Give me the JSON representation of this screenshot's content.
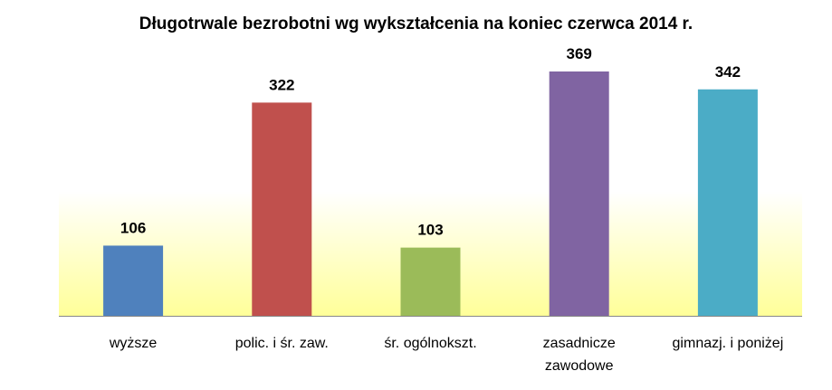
{
  "chart_data": {
    "type": "bar",
    "title": "Długotrwale bezrobotni wg wykształcenia na koniec czerwca 2014 r.",
    "categories": [
      [
        "wyższe"
      ],
      [
        "polic. i śr. zaw."
      ],
      [
        "śr. ogólnokszt."
      ],
      [
        "zasadnicze",
        "zawodowe"
      ],
      [
        "gimnazj. i poniżej"
      ]
    ],
    "values": [
      106,
      322,
      103,
      369,
      342
    ],
    "data_labels": [
      "106",
      "322",
      "103",
      "369",
      "342"
    ],
    "bar_colors": [
      "#4f81bd",
      "#c0504d",
      "#9bbb59",
      "#8064a2",
      "#4bacc6"
    ],
    "background_gradient": [
      "#ffffff",
      "#ffff99"
    ],
    "xlabel": "",
    "ylabel": "",
    "ylim": [
      0,
      400
    ],
    "grid": false,
    "legend": "none"
  }
}
